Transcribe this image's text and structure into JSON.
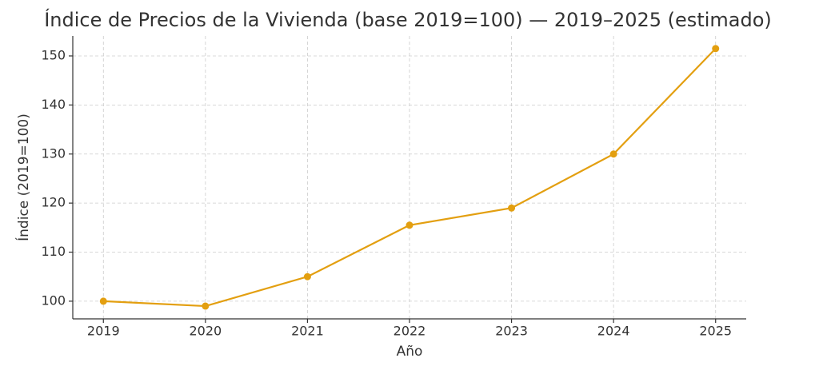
{
  "chart_data": {
    "type": "line",
    "title": "Índice de Precios de la Vivienda (base 2019=100) — 2019–2025 (estimado)",
    "x_label": "Año",
    "y_label": "Índice (2019=100)",
    "x": [
      2019,
      2020,
      2021,
      2022,
      2023,
      2024,
      2025
    ],
    "values": [
      100,
      99,
      105,
      115.5,
      119,
      130,
      151.5
    ],
    "color": "#e39f10",
    "xlim": [
      2018.7,
      2025.3
    ],
    "xticks": [
      2019,
      2020,
      2021,
      2022,
      2023,
      2024,
      2025
    ],
    "ylim": [
      96.4,
      154.07
    ],
    "yticks": [
      100,
      110,
      120,
      130,
      140,
      150
    ],
    "grid": true
  }
}
